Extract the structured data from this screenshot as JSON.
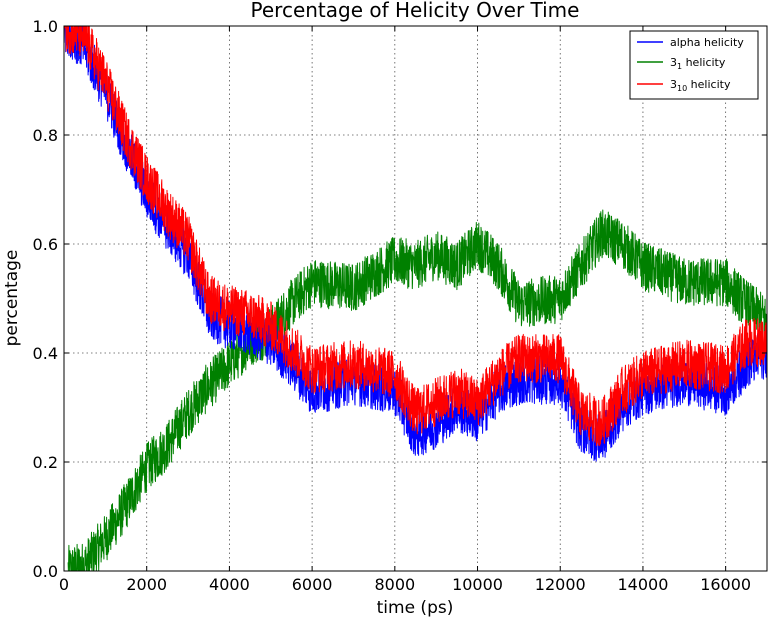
{
  "chart_data": {
    "type": "line",
    "title": "Percentage of Helicity Over Time",
    "xlabel": "time (ps)",
    "ylabel": "percentage",
    "xlim": [
      0,
      17000
    ],
    "ylim": [
      0,
      1.0
    ],
    "x_ticks": [
      0,
      2000,
      4000,
      6000,
      8000,
      10000,
      12000,
      14000,
      16000
    ],
    "x_tick_labels": [
      "0",
      "2000",
      "4000",
      "6000",
      "8000",
      "10000",
      "12000",
      "14000",
      "16000"
    ],
    "y_ticks": [
      0,
      0.2,
      0.4,
      0.6,
      0.8,
      1.0
    ],
    "y_tick_labels": [
      "0.0",
      "0.2",
      "0.4",
      "0.6",
      "0.8",
      "1.0"
    ],
    "grid": true,
    "legend_position": "top-right",
    "series": [
      {
        "name": "alpha helicity",
        "legend_main": "alpha helicity",
        "legend_sub": "",
        "legend_after": "",
        "color": "#0000ff",
        "x": [
          0,
          500,
          1000,
          1500,
          2000,
          2500,
          3000,
          3500,
          4000,
          4500,
          5000,
          5500,
          6000,
          7000,
          8000,
          8500,
          9000,
          9500,
          10000,
          10500,
          11000,
          12000,
          12500,
          13000,
          13500,
          14000,
          15000,
          16000,
          16500,
          17000
        ],
        "y": [
          1.0,
          0.96,
          0.88,
          0.78,
          0.69,
          0.63,
          0.58,
          0.47,
          0.45,
          0.44,
          0.42,
          0.38,
          0.33,
          0.35,
          0.33,
          0.25,
          0.27,
          0.3,
          0.28,
          0.33,
          0.35,
          0.35,
          0.26,
          0.24,
          0.3,
          0.33,
          0.35,
          0.33,
          0.38,
          0.4
        ],
        "noise": 0.045
      },
      {
        "name": "3_1 helicity",
        "legend_main": "3",
        "legend_sub": "1",
        "legend_after": " helicity",
        "color": "#008000",
        "x": [
          0,
          500,
          1000,
          1500,
          2000,
          2500,
          3000,
          3500,
          4000,
          4500,
          5000,
          5500,
          6000,
          7000,
          8000,
          8500,
          9000,
          9500,
          10000,
          10500,
          11000,
          12000,
          12500,
          13000,
          13500,
          14000,
          15000,
          16000,
          16500,
          17000
        ],
        "y": [
          0.0,
          0.01,
          0.06,
          0.12,
          0.19,
          0.23,
          0.29,
          0.34,
          0.38,
          0.42,
          0.44,
          0.49,
          0.53,
          0.52,
          0.57,
          0.56,
          0.58,
          0.56,
          0.6,
          0.56,
          0.49,
          0.5,
          0.56,
          0.62,
          0.6,
          0.56,
          0.53,
          0.53,
          0.49,
          0.46
        ],
        "noise": 0.045
      },
      {
        "name": "3_10 helicity",
        "legend_main": "3",
        "legend_sub": "10",
        "legend_after": " helicity",
        "color": "#ff0000",
        "x": [
          0,
          500,
          1000,
          1500,
          2000,
          2500,
          3000,
          3500,
          4000,
          4500,
          5000,
          5500,
          6000,
          7000,
          8000,
          8500,
          9000,
          9500,
          10000,
          10500,
          11000,
          12000,
          12500,
          13000,
          13500,
          14000,
          15000,
          16000,
          16500,
          17000
        ],
        "y": [
          1.0,
          0.98,
          0.9,
          0.8,
          0.72,
          0.66,
          0.61,
          0.5,
          0.48,
          0.47,
          0.45,
          0.41,
          0.37,
          0.38,
          0.36,
          0.29,
          0.31,
          0.33,
          0.31,
          0.36,
          0.39,
          0.39,
          0.29,
          0.27,
          0.33,
          0.36,
          0.38,
          0.37,
          0.42,
          0.42
        ],
        "noise": 0.045
      }
    ]
  }
}
